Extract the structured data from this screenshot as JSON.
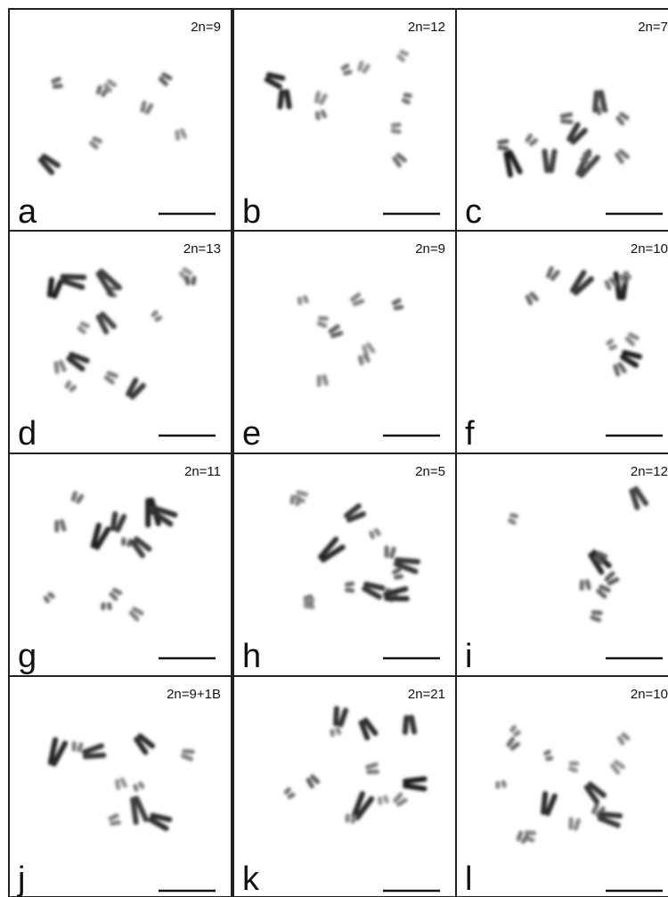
{
  "panels": [
    {
      "letter": "a",
      "count": "2n=9"
    },
    {
      "letter": "b",
      "count": "2n=12"
    },
    {
      "letter": "c",
      "count": "2n=7"
    },
    {
      "letter": "d",
      "count": "2n=13"
    },
    {
      "letter": "e",
      "count": "2n=9"
    },
    {
      "letter": "f",
      "count": "2n=10"
    },
    {
      "letter": "g",
      "count": "2n=11"
    },
    {
      "letter": "h",
      "count": "2n=5"
    },
    {
      "letter": "i",
      "count": "2n=12"
    },
    {
      "letter": "j",
      "count": "2n=9+1B"
    },
    {
      "letter": "k",
      "count": "2n=21"
    },
    {
      "letter": "l",
      "count": "2n=10"
    }
  ]
}
